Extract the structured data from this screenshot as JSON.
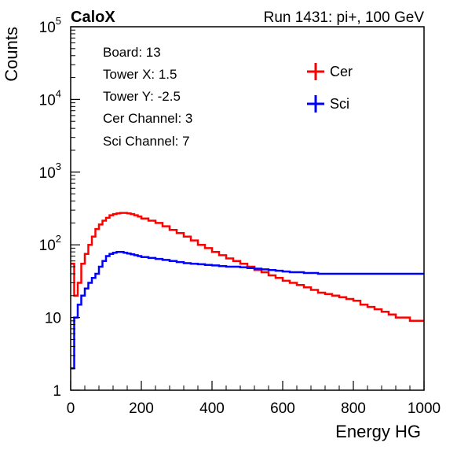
{
  "header": {
    "brand": "CaloX",
    "run_label": "Run 1431: pi+, 100 GeV"
  },
  "info_box": {
    "lines": [
      "Board: 13",
      "Tower X: 1.5",
      "Tower Y: -2.5",
      "Cer Channel: 3",
      "Sci Channel: 7"
    ]
  },
  "chart_data": {
    "type": "line",
    "xlabel": "Energy HG",
    "ylabel": "Counts",
    "xlim": [
      0,
      1000
    ],
    "ylim": [
      1,
      100000
    ],
    "yscale": "log",
    "x_ticks": [
      0,
      200,
      400,
      600,
      800,
      1000
    ],
    "x_tick_labels": [
      "0",
      "200",
      "400",
      "600",
      "800",
      "1000"
    ],
    "y_ticks": [
      1,
      10,
      100,
      1000,
      10000,
      100000
    ],
    "y_tick_labels": [
      {
        "base": "1",
        "exp": ""
      },
      {
        "base": "10",
        "exp": ""
      },
      {
        "base": "10",
        "exp": "2"
      },
      {
        "base": "10",
        "exp": "3"
      },
      {
        "base": "10",
        "exp": "4"
      },
      {
        "base": "10",
        "exp": "5"
      }
    ],
    "legend_position": "top-right",
    "series": [
      {
        "name": "Cer",
        "color": "#ff0000",
        "x": [
          0,
          10,
          20,
          30,
          40,
          50,
          60,
          70,
          80,
          90,
          100,
          110,
          120,
          130,
          140,
          150,
          160,
          170,
          180,
          190,
          200,
          220,
          240,
          260,
          280,
          300,
          320,
          340,
          360,
          380,
          400,
          420,
          440,
          460,
          480,
          500,
          520,
          540,
          560,
          580,
          600,
          620,
          640,
          660,
          680,
          700,
          720,
          740,
          760,
          780,
          800,
          820,
          840,
          860,
          880,
          900,
          920,
          940,
          960,
          980,
          1000
        ],
        "y": [
          55,
          20,
          30,
          55,
          75,
          100,
          130,
          165,
          190,
          215,
          235,
          255,
          265,
          270,
          275,
          275,
          270,
          265,
          255,
          245,
          230,
          215,
          200,
          180,
          160,
          145,
          130,
          115,
          100,
          90,
          80,
          72,
          65,
          60,
          55,
          50,
          45,
          42,
          38,
          35,
          32,
          30,
          28,
          26,
          24,
          22,
          21,
          20,
          19,
          18,
          17,
          15,
          14,
          13,
          12,
          11,
          10,
          10,
          9,
          9,
          9
        ]
      },
      {
        "name": "Sci",
        "color": "#0000ff",
        "x": [
          0,
          10,
          20,
          30,
          40,
          50,
          60,
          70,
          80,
          90,
          100,
          110,
          120,
          130,
          140,
          150,
          160,
          170,
          180,
          190,
          200,
          220,
          240,
          260,
          280,
          300,
          320,
          340,
          360,
          380,
          400,
          420,
          440,
          460,
          480,
          500,
          520,
          540,
          560,
          580,
          600,
          620,
          640,
          660,
          680,
          700,
          720,
          740,
          760,
          780,
          800,
          820,
          840,
          860,
          880,
          900,
          920,
          940,
          960,
          980,
          1000
        ],
        "y": [
          2,
          10,
          15,
          20,
          25,
          30,
          35,
          40,
          50,
          60,
          70,
          75,
          78,
          80,
          80,
          78,
          76,
          74,
          72,
          70,
          68,
          66,
          64,
          62,
          60,
          58,
          56,
          55,
          54,
          53,
          52,
          51,
          50,
          50,
          49,
          48,
          47,
          46,
          45,
          44,
          43,
          42,
          42,
          41,
          41,
          40,
          40,
          40,
          40,
          40,
          40,
          40,
          40,
          40,
          40,
          40,
          40,
          40,
          40,
          40,
          40
        ]
      }
    ]
  }
}
